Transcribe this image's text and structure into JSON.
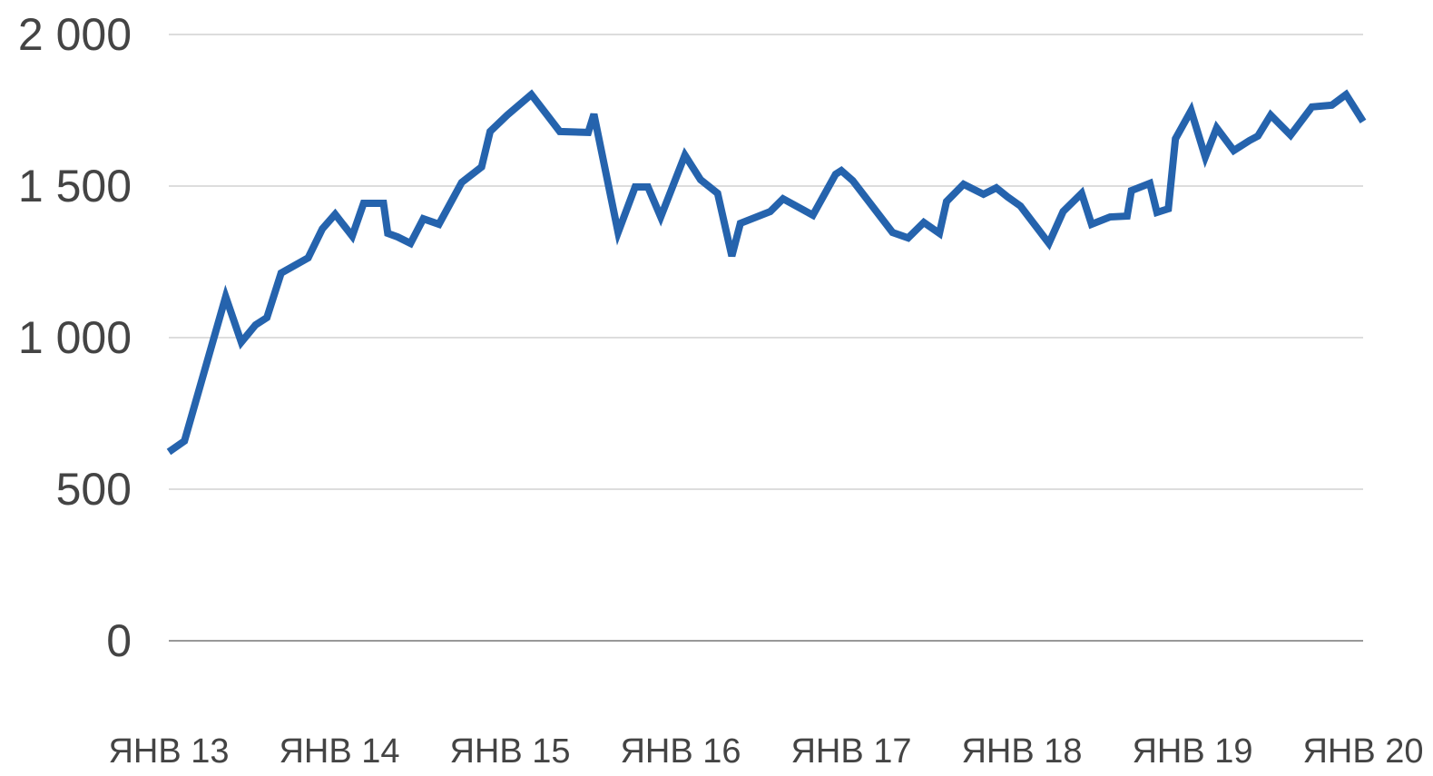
{
  "chart_data": {
    "type": "line",
    "x": [
      0,
      1.1,
      4,
      5.1,
      6.1,
      6.9,
      7.9,
      9.8,
      10.8,
      11.7,
      12.9,
      13.7,
      15.1,
      15.4,
      16.1,
      17,
      17.9,
      19,
      20.6,
      22,
      22.6,
      23.8,
      25.5,
      27.5,
      29.5,
      29.9,
      31.6,
      32.8,
      33.7,
      34.6,
      36.3,
      37.4,
      38.6,
      39.6,
      40.2,
      42.3,
      43.2,
      45.3,
      46.9,
      47.3,
      48.1,
      50.9,
      52,
      53.1,
      54.2,
      54.7,
      55.9,
      57.3,
      58.2,
      59,
      59.9,
      61.9,
      62.9,
      64.2,
      64.9,
      66.2,
      67.4,
      67.7,
      69,
      69.5,
      70.3,
      70.8,
      71.9,
      72.9,
      73.7,
      74.9,
      76,
      76.6,
      77.5,
      78.9,
      80.4,
      81.8,
      82.8,
      84
    ],
    "series": [
      {
        "color": "#2563ad",
        "values": [
          623,
          659,
          1135,
          985,
          1042,
          1066,
          1213,
          1263,
          1359,
          1407,
          1335,
          1443,
          1443,
          1344,
          1332,
          1311,
          1392,
          1374,
          1512,
          1563,
          1680,
          1734,
          1802,
          1680,
          1677,
          1737,
          1347,
          1497,
          1497,
          1398,
          1602,
          1521,
          1476,
          1269,
          1377,
          1416,
          1458,
          1404,
          1539,
          1551,
          1518,
          1347,
          1329,
          1380,
          1344,
          1449,
          1506,
          1473,
          1494,
          1464,
          1434,
          1311,
          1416,
          1476,
          1374,
          1398,
          1401,
          1485,
          1509,
          1413,
          1425,
          1656,
          1749,
          1596,
          1692,
          1617,
          1650,
          1665,
          1734,
          1668,
          1761,
          1767,
          1802,
          1713
        ]
      }
    ],
    "xlim": [
      0,
      84
    ],
    "xticks": [
      {
        "value": 0,
        "label": "ЯНВ 13"
      },
      {
        "value": 12,
        "label": "ЯНВ 14"
      },
      {
        "value": 24,
        "label": "ЯНВ 15"
      },
      {
        "value": 36,
        "label": "ЯНВ 16"
      },
      {
        "value": 48,
        "label": "ЯНВ 17"
      },
      {
        "value": 60,
        "label": "ЯНВ 18"
      },
      {
        "value": 72,
        "label": "ЯНВ 19"
      },
      {
        "value": 84,
        "label": "ЯНВ 20"
      }
    ],
    "ylim": [
      0,
      2000
    ],
    "yticks": [
      0,
      500,
      {
        "value": 1000,
        "label": "1 000"
      },
      {
        "value": 1500,
        "label": "1 500"
      },
      {
        "value": 2000,
        "label": "2 000"
      }
    ],
    "grid": true
  }
}
